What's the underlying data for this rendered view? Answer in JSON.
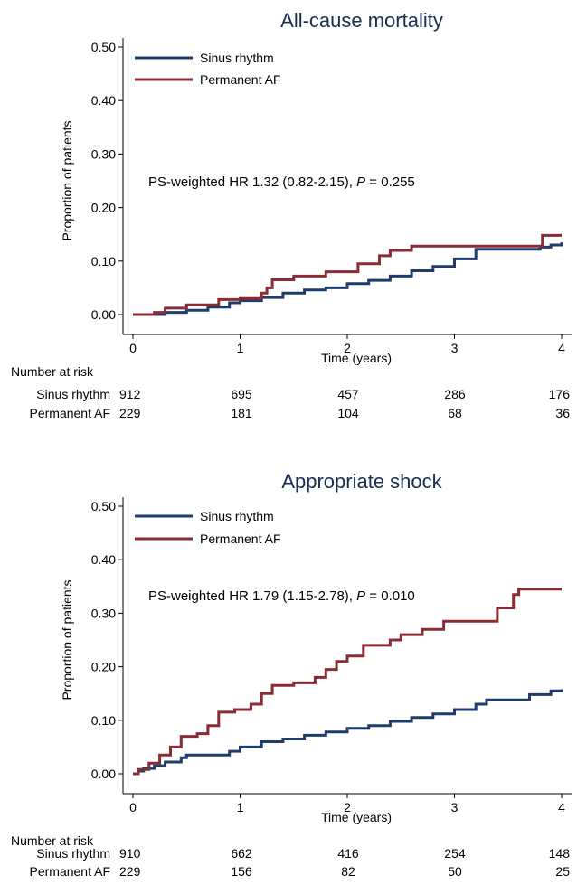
{
  "colors": {
    "sinus": "#1f3d6b",
    "af": "#8b2b33",
    "title": "#1a2e52"
  },
  "risk_header": "Number at risk",
  "chart_data": [
    {
      "type": "line",
      "title": "All-cause mortality",
      "xlabel": "Time (years)",
      "ylabel": "Proportion of patients",
      "xlim": [
        0,
        4
      ],
      "ylim": [
        0,
        0.5
      ],
      "xticks": [
        "0",
        "1",
        "2",
        "3",
        "4"
      ],
      "yticks": [
        "0.00",
        "0.10",
        "0.20",
        "0.30",
        "0.40",
        "0.50"
      ],
      "grid": false,
      "legend": "top-left",
      "annotation": {
        "prefix": "PS-weighted HR 1.32 (0.82-2.15), ",
        "p_label": "P",
        "suffix": " = 0.255"
      },
      "series": [
        {
          "name": "Sinus rhythm",
          "key": "sinus",
          "points": [
            [
              0,
              0
            ],
            [
              0.3,
              0.004
            ],
            [
              0.5,
              0.008
            ],
            [
              0.7,
              0.014
            ],
            [
              0.9,
              0.022
            ],
            [
              1.0,
              0.026
            ],
            [
              1.2,
              0.032
            ],
            [
              1.4,
              0.04
            ],
            [
              1.6,
              0.046
            ],
            [
              1.8,
              0.05
            ],
            [
              2.0,
              0.058
            ],
            [
              2.2,
              0.064
            ],
            [
              2.4,
              0.072
            ],
            [
              2.6,
              0.082
            ],
            [
              2.8,
              0.09
            ],
            [
              3.0,
              0.104
            ],
            [
              3.2,
              0.122
            ],
            [
              3.4,
              0.122
            ],
            [
              3.6,
              0.122
            ],
            [
              3.8,
              0.126
            ],
            [
              3.9,
              0.13
            ],
            [
              4.0,
              0.135
            ]
          ],
          "risk": [
            "912",
            "695",
            "457",
            "286",
            "176"
          ]
        },
        {
          "name": "Permanent AF",
          "key": "af",
          "points": [
            [
              0,
              0
            ],
            [
              0.2,
              0.004
            ],
            [
              0.3,
              0.012
            ],
            [
              0.5,
              0.018
            ],
            [
              0.8,
              0.028
            ],
            [
              1.0,
              0.03
            ],
            [
              1.2,
              0.04
            ],
            [
              1.25,
              0.05
            ],
            [
              1.3,
              0.065
            ],
            [
              1.5,
              0.072
            ],
            [
              1.8,
              0.08
            ],
            [
              2.1,
              0.095
            ],
            [
              2.3,
              0.11
            ],
            [
              2.4,
              0.12
            ],
            [
              2.6,
              0.128
            ],
            [
              3.0,
              0.128
            ],
            [
              3.5,
              0.128
            ],
            [
              3.8,
              0.128
            ],
            [
              3.82,
              0.148
            ],
            [
              4.0,
              0.148
            ]
          ],
          "risk": [
            "229",
            "181",
            "104",
            "68",
            "36"
          ]
        }
      ]
    },
    {
      "type": "line",
      "title": "Appropriate shock",
      "xlabel": "Time (years)",
      "ylabel": "Proportion of patients",
      "xlim": [
        0,
        4
      ],
      "ylim": [
        0,
        0.5
      ],
      "xticks": [
        "0",
        "1",
        "2",
        "3",
        "4"
      ],
      "yticks": [
        "0.00",
        "0.10",
        "0.20",
        "0.30",
        "0.40",
        "0.50"
      ],
      "grid": false,
      "legend": "top-left",
      "annotation": {
        "prefix": "PS-weighted HR 1.79 (1.15-2.78), ",
        "p_label": "P",
        "suffix": " = 0.010"
      },
      "series": [
        {
          "name": "Sinus rhythm",
          "key": "sinus",
          "points": [
            [
              0,
              0
            ],
            [
              0.05,
              0.005
            ],
            [
              0.1,
              0.01
            ],
            [
              0.2,
              0.015
            ],
            [
              0.3,
              0.022
            ],
            [
              0.45,
              0.03
            ],
            [
              0.5,
              0.035
            ],
            [
              0.75,
              0.035
            ],
            [
              0.9,
              0.042
            ],
            [
              1.0,
              0.05
            ],
            [
              1.2,
              0.06
            ],
            [
              1.4,
              0.065
            ],
            [
              1.6,
              0.072
            ],
            [
              1.8,
              0.078
            ],
            [
              2.0,
              0.085
            ],
            [
              2.2,
              0.09
            ],
            [
              2.4,
              0.098
            ],
            [
              2.6,
              0.105
            ],
            [
              2.8,
              0.112
            ],
            [
              3.0,
              0.12
            ],
            [
              3.2,
              0.13
            ],
            [
              3.3,
              0.138
            ],
            [
              3.6,
              0.138
            ],
            [
              3.7,
              0.148
            ],
            [
              3.9,
              0.155
            ],
            [
              4.0,
              0.158
            ]
          ],
          "risk": [
            "910",
            "662",
            "416",
            "254",
            "148"
          ]
        },
        {
          "name": "Permanent AF",
          "key": "af",
          "points": [
            [
              0,
              0
            ],
            [
              0.05,
              0.008
            ],
            [
              0.15,
              0.02
            ],
            [
              0.25,
              0.035
            ],
            [
              0.35,
              0.05
            ],
            [
              0.45,
              0.07
            ],
            [
              0.6,
              0.075
            ],
            [
              0.7,
              0.09
            ],
            [
              0.8,
              0.115
            ],
            [
              0.95,
              0.12
            ],
            [
              1.1,
              0.13
            ],
            [
              1.2,
              0.15
            ],
            [
              1.3,
              0.165
            ],
            [
              1.5,
              0.17
            ],
            [
              1.7,
              0.18
            ],
            [
              1.8,
              0.195
            ],
            [
              1.9,
              0.21
            ],
            [
              2.0,
              0.22
            ],
            [
              2.15,
              0.24
            ],
            [
              2.4,
              0.25
            ],
            [
              2.5,
              0.26
            ],
            [
              2.7,
              0.27
            ],
            [
              2.9,
              0.285
            ],
            [
              3.2,
              0.285
            ],
            [
              3.4,
              0.31
            ],
            [
              3.55,
              0.335
            ],
            [
              3.6,
              0.345
            ],
            [
              4.0,
              0.345
            ]
          ],
          "risk": [
            "229",
            "156",
            "82",
            "50",
            "25"
          ]
        }
      ]
    }
  ]
}
